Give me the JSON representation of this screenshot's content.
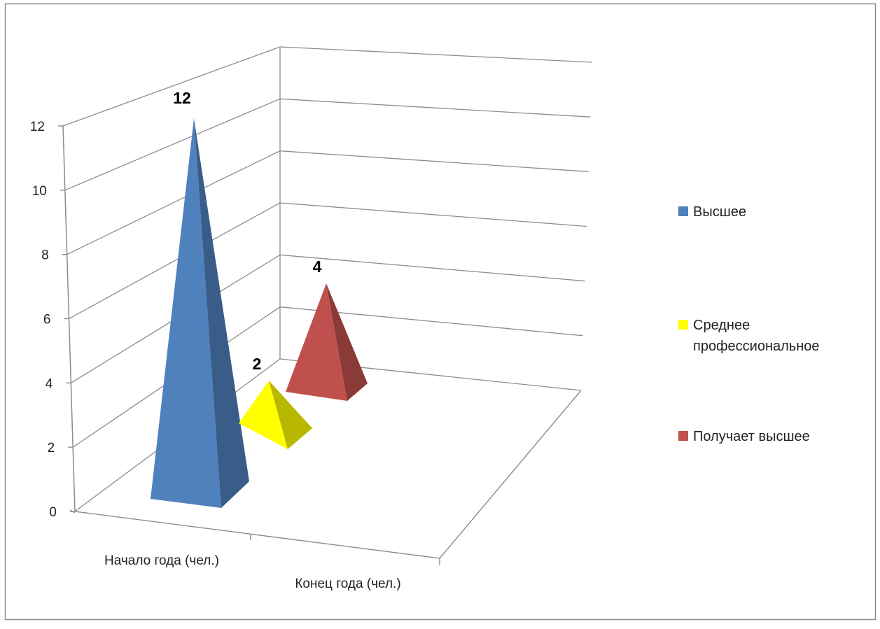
{
  "chart_data": {
    "type": "bar",
    "variant": "3d-pyramid",
    "title": "",
    "xlabel": "",
    "ylabel": "",
    "ylim": [
      0,
      12
    ],
    "y_ticks": [
      0,
      2,
      4,
      6,
      8,
      10,
      12
    ],
    "categories": [
      "Начало года (чел.)",
      "Конец года (чел.)"
    ],
    "series": [
      {
        "name": "Высшее",
        "values": [
          12,
          null
        ],
        "color": "#4f81bd"
      },
      {
        "name": "Среднее профессиональное",
        "values": [
          2,
          null
        ],
        "color": "#ffff00"
      },
      {
        "name": "Получает высшее",
        "values": [
          4,
          null
        ],
        "color": "#c0504d"
      }
    ],
    "data_labels": [
      "12",
      "2",
      "4"
    ],
    "legend": {
      "position": "right",
      "items": [
        {
          "lines": [
            "Высшее"
          ],
          "color": "#4f81bd"
        },
        {
          "lines": [
            "Среднее",
            "профессиональное"
          ],
          "color": "#ffff00"
        },
        {
          "lines": [
            "Получает высшее"
          ],
          "color": "#c0504d"
        }
      ]
    },
    "grid": true
  }
}
